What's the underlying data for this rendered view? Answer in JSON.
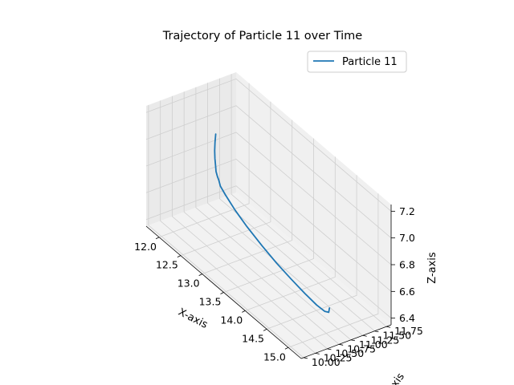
{
  "chart_data": {
    "type": "line",
    "projection": "3d",
    "title": "Trajectory of Particle 11 over Time",
    "xlabel": "X-axis",
    "ylabel": "Y-axis",
    "zlabel": "Z-axis",
    "xlim": [
      11.7,
      15.3
    ],
    "ylim": [
      9.95,
      11.85
    ],
    "zlim": [
      6.35,
      7.25
    ],
    "xticks": [
      "12.0",
      "12.5",
      "13.0",
      "13.5",
      "14.0",
      "14.5",
      "15.0"
    ],
    "yticks": [
      "10.00",
      "10.25",
      "10.50",
      "10.75",
      "11.00",
      "11.25",
      "11.50",
      "11.75"
    ],
    "zticks": [
      "6.4",
      "6.6",
      "6.8",
      "7.0",
      "7.2"
    ],
    "grid": true,
    "legend": "top-right",
    "series": [
      {
        "name": "Particle 11",
        "color": "#1f77b4",
        "x": [
          12.6,
          12.55,
          12.5,
          12.45,
          12.4,
          12.3,
          12.2,
          12.1,
          12.05,
          12.1,
          12.3,
          12.6,
          13.0,
          13.4,
          13.8,
          14.2,
          14.55,
          14.8,
          14.95,
          15.0
        ],
        "y": [
          10.6,
          10.63,
          10.67,
          10.72,
          10.78,
          10.88,
          11.0,
          11.12,
          11.2,
          11.26,
          11.28,
          11.26,
          11.22,
          11.16,
          11.1,
          11.03,
          10.96,
          10.9,
          10.85,
          10.82
        ],
        "z": [
          7.2,
          7.12,
          7.04,
          6.96,
          6.88,
          6.8,
          6.72,
          6.65,
          6.58,
          6.52,
          6.46,
          6.42,
          6.39,
          6.38,
          6.38,
          6.39,
          6.41,
          6.44,
          6.48,
          6.53
        ]
      }
    ]
  }
}
